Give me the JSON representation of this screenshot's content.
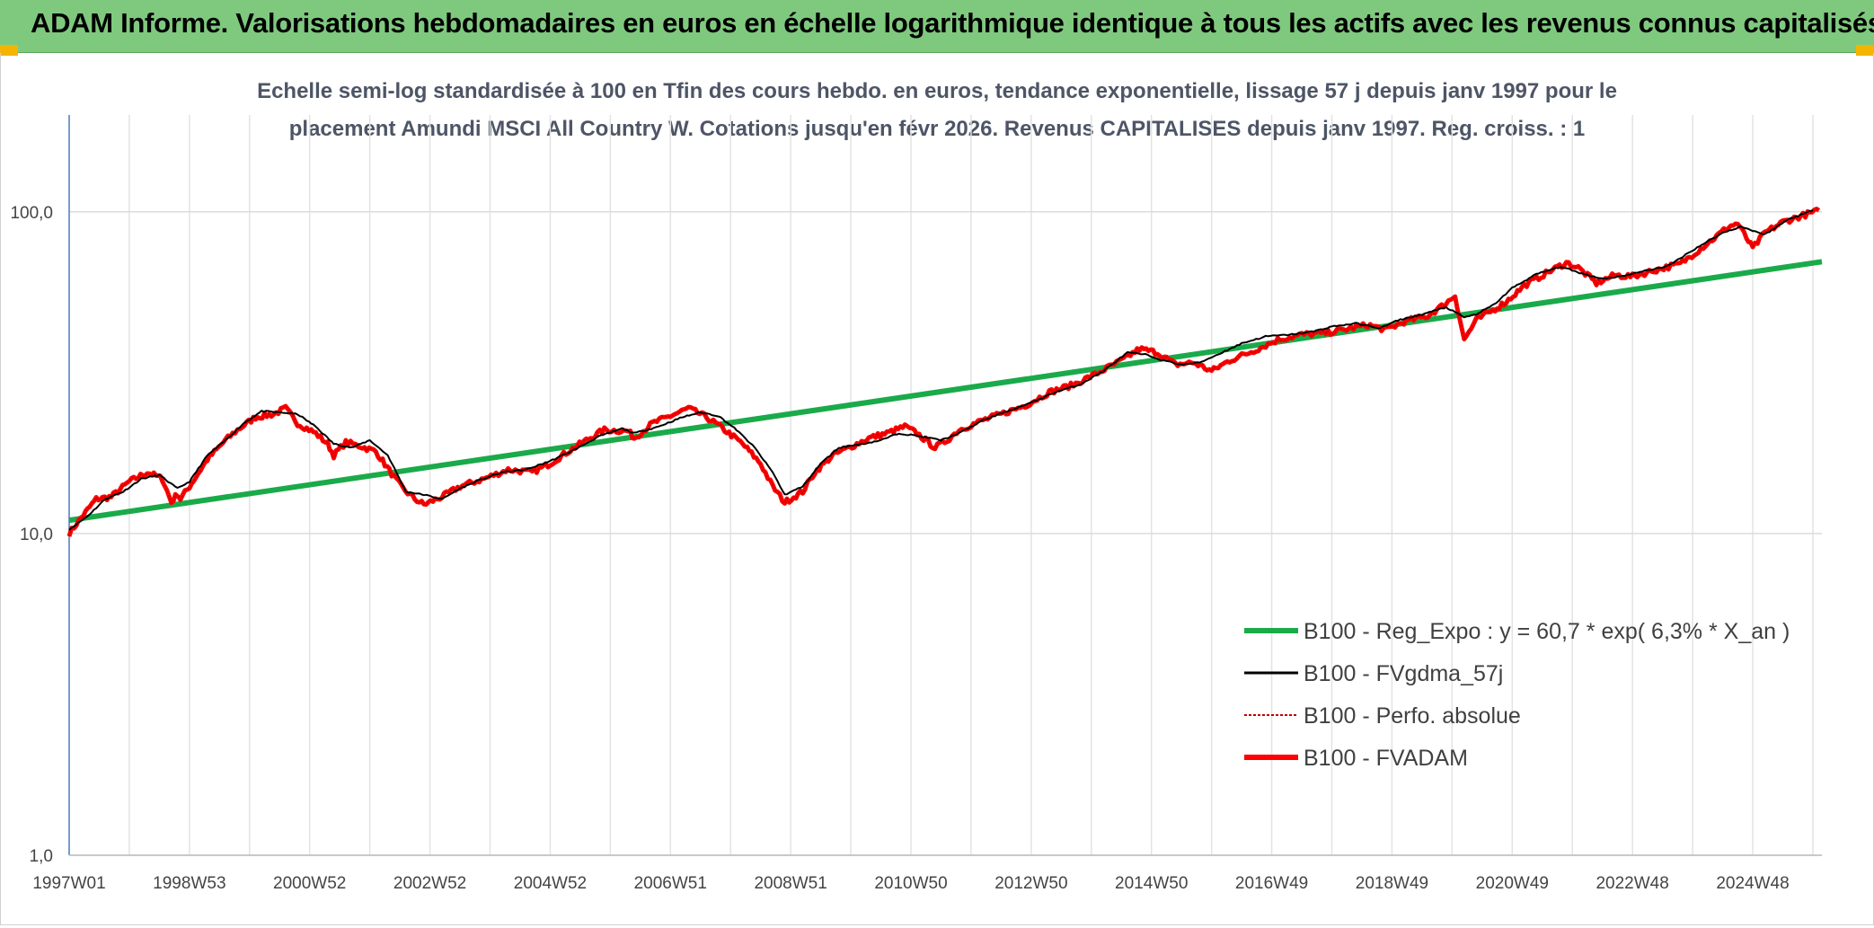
{
  "header": {
    "title": "ADAM Informe. Valorisations hebdomadaires en euros en échelle logarithmique identique à tous les actifs avec les revenus connus capitalisés"
  },
  "colors": {
    "header_bg": "#7fc97f",
    "regression": "#1aaa4a",
    "fvgdma": "#000000",
    "perfo": "#c00000",
    "fvadam": "#ff0000",
    "corner": "#f4b400"
  },
  "chart_data": {
    "type": "line",
    "title": "",
    "subtitle_line1": "Echelle semi-log standardisée à 100 en Tfin des cours hebdo. en euros, tendance exponentielle, lissage 57 j depuis janv 1997 pour le",
    "subtitle_line2": "placement Amundi MSCI All Country W. Cotations jusqu'en févr 2026. Revenus CAPITALISES depuis janv 1997. Reg. croiss. : 1",
    "xlabel": "",
    "ylabel": "",
    "y_scale": "log",
    "ylim": [
      1,
      200
    ],
    "y_ticks": [
      {
        "value": 1,
        "label": "1,0"
      },
      {
        "value": 10,
        "label": "10,0"
      },
      {
        "value": 100,
        "label": "100,0"
      }
    ],
    "xlim": [
      1997.0,
      2026.15
    ],
    "x_ticks": [
      {
        "value": 1997.0,
        "label": "1997W01"
      },
      {
        "value": 1999.0,
        "label": "1998W53"
      },
      {
        "value": 2001.0,
        "label": "2000W52"
      },
      {
        "value": 2003.0,
        "label": "2002W52"
      },
      {
        "value": 2005.0,
        "label": "2004W52"
      },
      {
        "value": 2007.0,
        "label": "2006W51"
      },
      {
        "value": 2009.0,
        "label": "2008W51"
      },
      {
        "value": 2011.0,
        "label": "2010W50"
      },
      {
        "value": 2013.0,
        "label": "2012W50"
      },
      {
        "value": 2015.0,
        "label": "2014W50"
      },
      {
        "value": 2017.0,
        "label": "2016W49"
      },
      {
        "value": 2019.0,
        "label": "2018W49"
      },
      {
        "value": 2021.0,
        "label": "2020W49"
      },
      {
        "value": 2023.0,
        "label": "2022W48"
      },
      {
        "value": 2025.0,
        "label": "2024W48"
      }
    ],
    "grid": true,
    "legend_position": "bottom-right",
    "series": [
      {
        "name": "B100 - Reg_Expo : y = 60,7 * exp( 6,3% *  X_an )",
        "kind": "regression",
        "x": [
          1997.0,
          2026.15
        ],
        "y": [
          11.0,
          70.0
        ]
      },
      {
        "name": "B100 - FVgdma_57j",
        "kind": "smoothed",
        "x": [
          1997.0,
          1997.3,
          1997.6,
          1997.9,
          1998.2,
          1998.5,
          1998.8,
          1999.0,
          1999.3,
          1999.6,
          1999.9,
          2000.2,
          2000.5,
          2000.8,
          2001.1,
          2001.4,
          2001.7,
          2002.0,
          2002.3,
          2002.6,
          2002.9,
          2003.2,
          2003.5,
          2003.8,
          2004.2,
          2004.6,
          2005.0,
          2005.4,
          2005.8,
          2006.2,
          2006.4,
          2006.8,
          2007.2,
          2007.5,
          2007.8,
          2008.1,
          2008.4,
          2008.7,
          2008.9,
          2009.2,
          2009.5,
          2009.8,
          2010.2,
          2010.5,
          2010.8,
          2011.2,
          2011.5,
          2011.8,
          2012.2,
          2012.6,
          2013.0,
          2013.4,
          2013.8,
          2014.2,
          2014.6,
          2014.9,
          2015.2,
          2015.5,
          2015.8,
          2016.1,
          2016.5,
          2016.9,
          2017.3,
          2017.7,
          2018.0,
          2018.4,
          2018.8,
          2019.1,
          2019.5,
          2019.9,
          2020.2,
          2020.4,
          2020.7,
          2021.0,
          2021.4,
          2021.8,
          2022.2,
          2022.5,
          2022.8,
          2023.2,
          2023.6,
          2024.0,
          2024.3,
          2024.5,
          2024.8,
          2025.2,
          2025.6,
          2026.0
        ],
        "y": [
          10.3,
          11.3,
          12.8,
          13.5,
          14.8,
          15.2,
          13.8,
          14.5,
          17.5,
          19.5,
          22.0,
          24.0,
          23.8,
          23.5,
          21.5,
          19.0,
          18.5,
          19.5,
          17.5,
          13.5,
          13.2,
          12.8,
          13.8,
          14.6,
          15.5,
          15.8,
          16.8,
          18.2,
          20.0,
          21.2,
          20.5,
          21.5,
          23.0,
          23.8,
          23.2,
          21.0,
          18.5,
          15.5,
          13.2,
          14.0,
          16.5,
          18.5,
          19.0,
          19.5,
          20.5,
          20.0,
          19.5,
          20.5,
          22.5,
          24.0,
          25.5,
          27.5,
          29.0,
          32.0,
          36.5,
          36.0,
          34.5,
          33.5,
          34.0,
          36.0,
          39.0,
          41.0,
          41.5,
          42.5,
          44.0,
          45.0,
          43.5,
          46.0,
          48.0,
          50.5,
          47.0,
          48.0,
          51.5,
          58.0,
          64.0,
          67.5,
          64.0,
          62.0,
          63.0,
          65.5,
          68.0,
          76.0,
          82.0,
          86.0,
          90.0,
          85.0,
          95.0,
          101.0
        ]
      },
      {
        "name": "B100 - Perfo. absolue",
        "kind": "absolute",
        "x": [
          1997.0,
          1997.2,
          1997.45,
          1997.7,
          1998.0,
          1998.3,
          1998.55,
          1998.7,
          1998.8,
          1998.85,
          1999.0,
          1999.3,
          1999.6,
          1999.8,
          2000.1,
          2000.4,
          2000.6,
          2000.8,
          2001.1,
          2001.3,
          2001.4,
          2001.6,
          2001.8,
          2002.1,
          2002.4,
          2002.55,
          2002.75,
          2002.9,
          2003.2,
          2003.5,
          2003.9,
          2004.3,
          2004.7,
          2005.0,
          2005.3,
          2005.6,
          2005.9,
          2006.3,
          2006.4,
          2006.7,
          2007.0,
          2007.3,
          2007.6,
          2007.9,
          2008.2,
          2008.5,
          2008.7,
          2008.9,
          2009.2,
          2009.4,
          2009.7,
          2010.1,
          2010.3,
          2010.6,
          2010.9,
          2011.1,
          2011.4,
          2011.6,
          2011.8,
          2012.2,
          2012.5,
          2012.9,
          2013.3,
          2013.7,
          2014.1,
          2014.5,
          2014.8,
          2015.1,
          2015.4,
          2015.7,
          2016.0,
          2016.3,
          2016.7,
          2017.1,
          2017.5,
          2017.9,
          2018.2,
          2018.6,
          2018.9,
          2019.2,
          2019.6,
          2019.9,
          2020.05,
          2020.2,
          2020.4,
          2020.6,
          2020.9,
          2021.2,
          2021.6,
          2021.9,
          2022.1,
          2022.4,
          2022.7,
          2023.0,
          2023.4,
          2023.8,
          2024.1,
          2024.4,
          2024.6,
          2024.75,
          2025.0,
          2025.2,
          2025.5,
          2025.8,
          2026.1
        ],
        "y": [
          10.0,
          11.2,
          12.8,
          13.0,
          14.5,
          15.5,
          14.8,
          12.5,
          13.3,
          12.8,
          14.0,
          17.0,
          19.5,
          21.0,
          23.0,
          23.5,
          24.5,
          22.0,
          20.5,
          19.0,
          17.5,
          19.2,
          18.8,
          18.0,
          15.0,
          13.8,
          12.8,
          12.3,
          13.0,
          14.0,
          14.8,
          15.8,
          15.5,
          16.5,
          18.0,
          19.5,
          21.0,
          20.8,
          19.8,
          22.0,
          23.2,
          24.5,
          23.0,
          21.0,
          19.0,
          16.5,
          14.0,
          12.5,
          13.5,
          15.5,
          17.5,
          19.0,
          19.8,
          20.5,
          21.5,
          20.5,
          18.5,
          19.5,
          21.0,
          22.5,
          23.5,
          25.0,
          27.5,
          29.0,
          31.5,
          34.5,
          37.5,
          36.5,
          33.5,
          34.0,
          32.0,
          34.5,
          37.0,
          40.0,
          41.5,
          42.0,
          43.0,
          44.5,
          43.0,
          45.5,
          47.5,
          52.0,
          55.0,
          40.0,
          46.0,
          48.5,
          52.5,
          59.0,
          65.0,
          69.5,
          67.0,
          60.0,
          63.5,
          63.0,
          66.0,
          69.0,
          76.0,
          84.0,
          90.0,
          92.0,
          77.0,
          86.0,
          93.0,
          97.0,
          101.0
        ]
      },
      {
        "name": "B100 - FVADAM",
        "kind": "fvadam"
      }
    ]
  }
}
